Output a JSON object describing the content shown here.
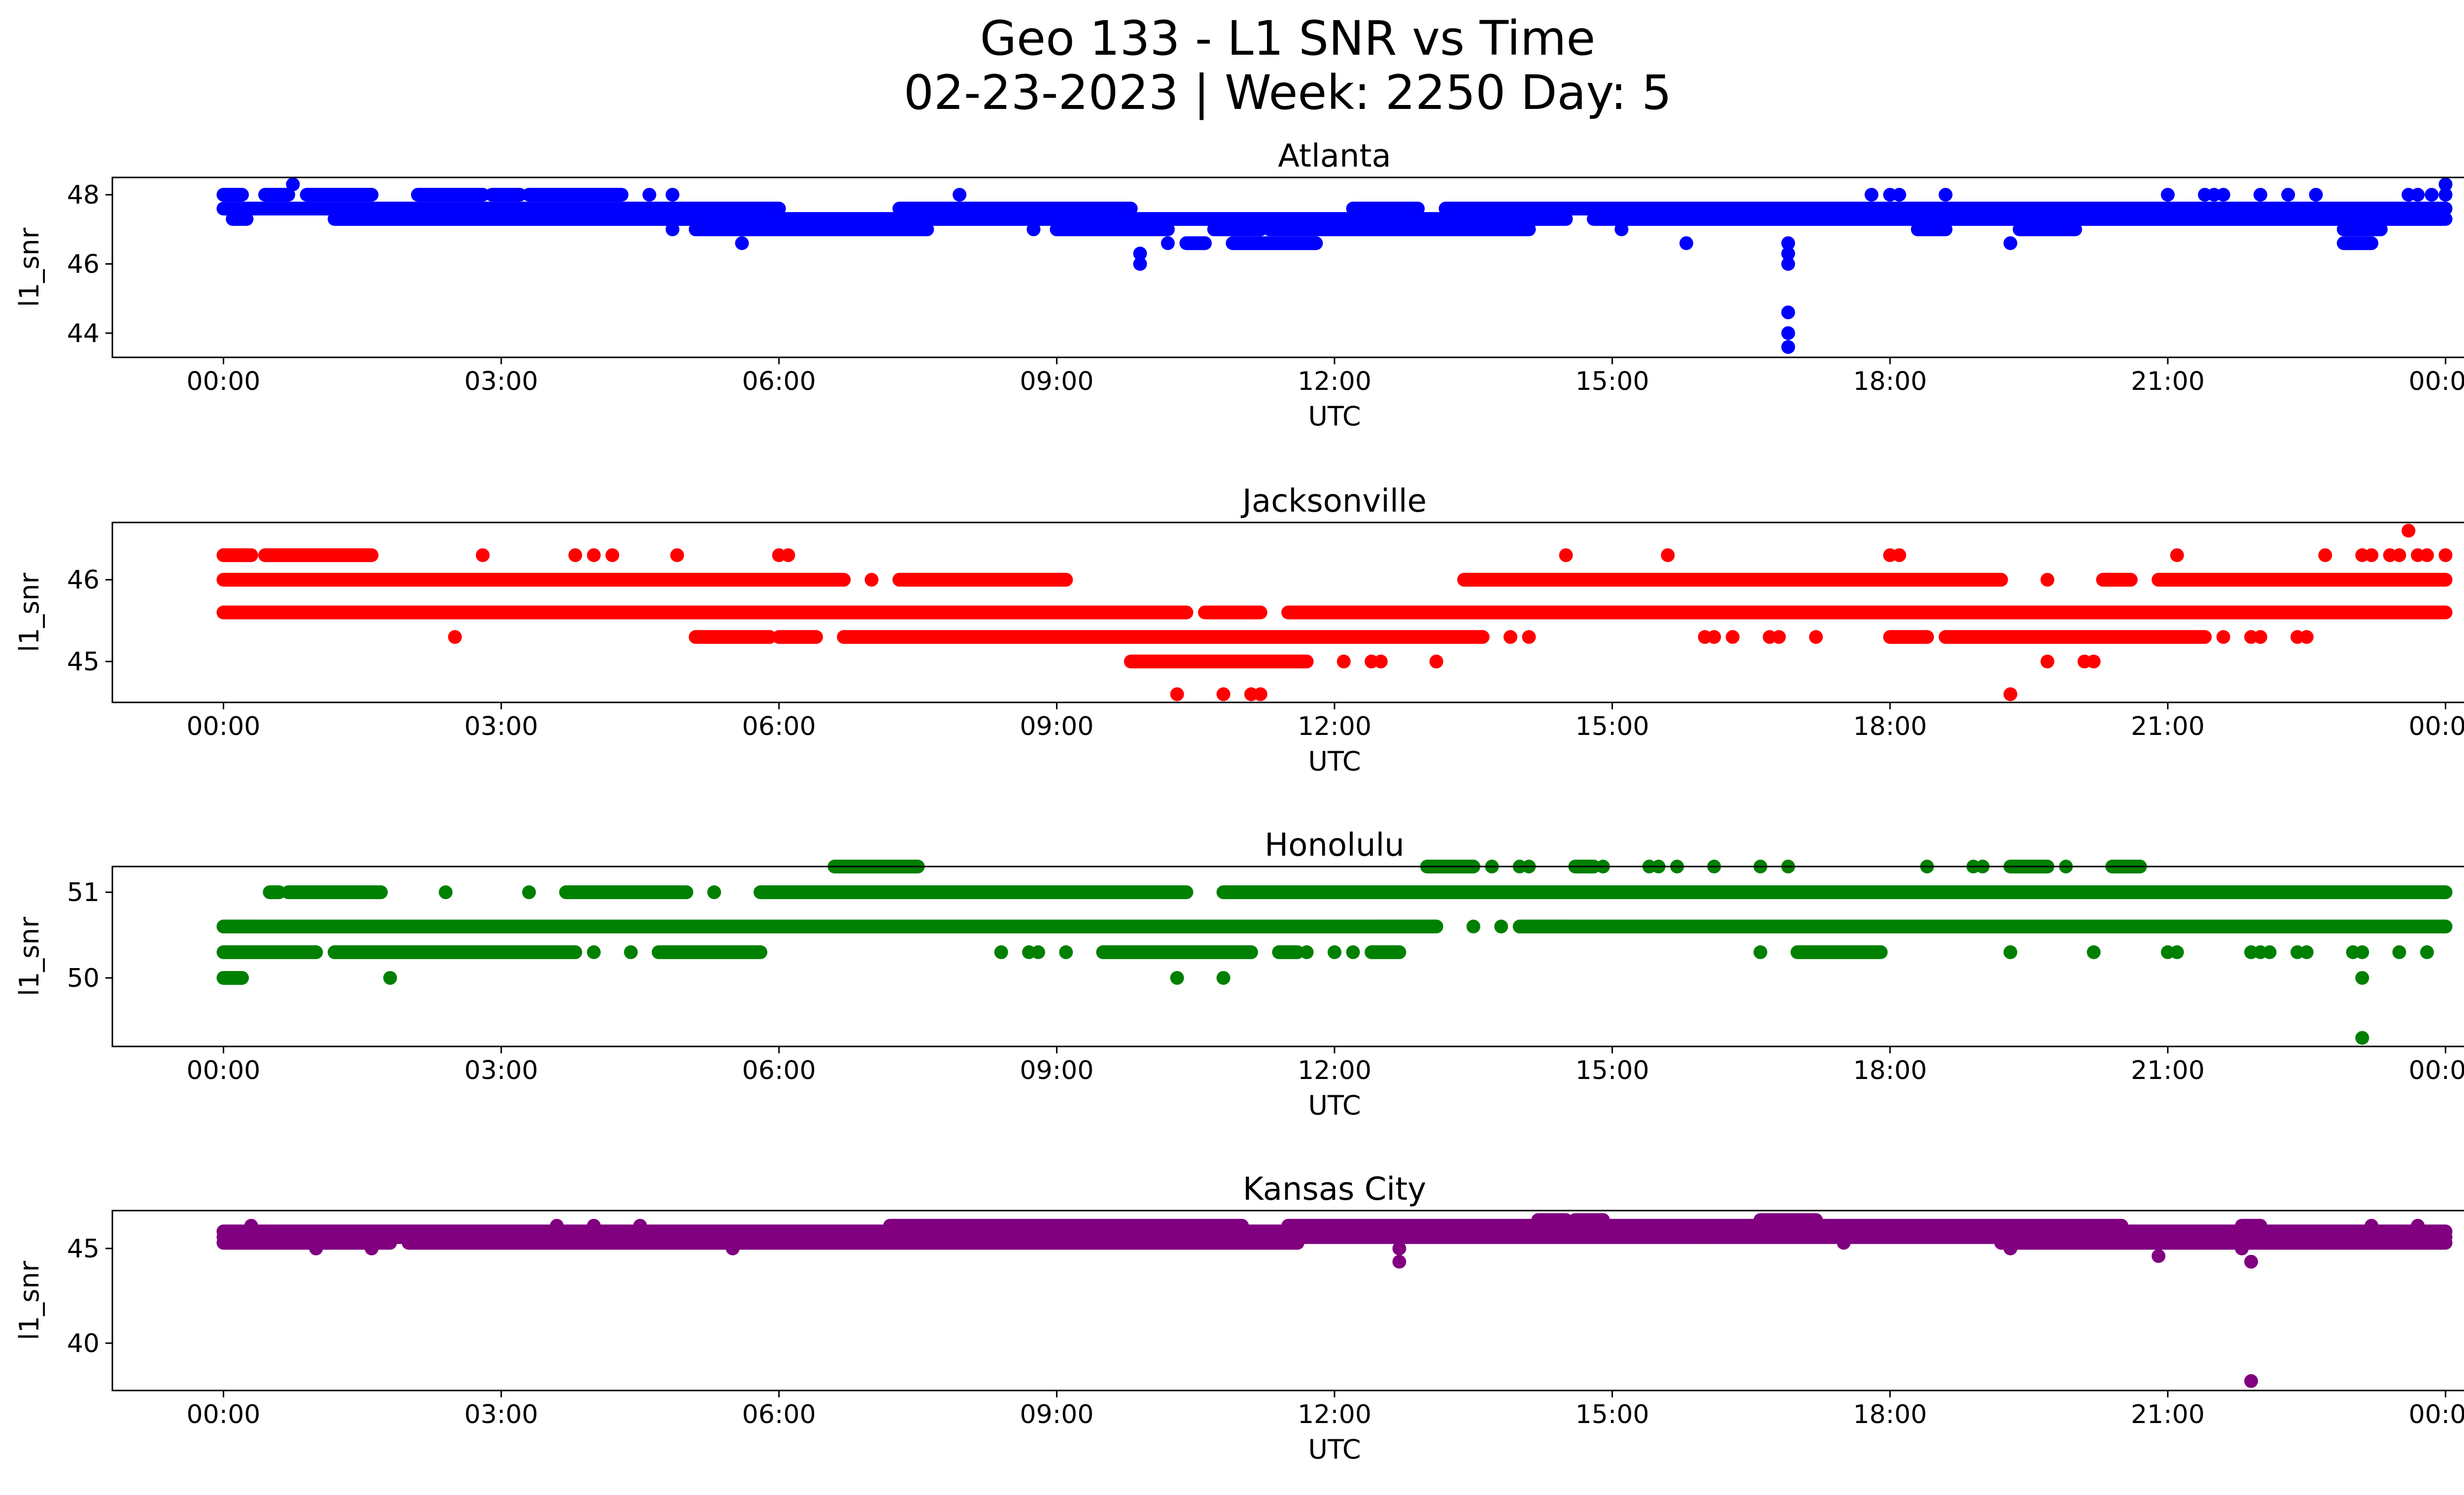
{
  "figure": {
    "title_line1": "Geo 133 - L1 SNR vs Time",
    "title_line2": "02-23-2023 | Week: 2250 Day: 5"
  },
  "chart_data": [
    {
      "type": "scatter",
      "title": "Atlanta",
      "xlabel": "UTC",
      "ylabel": "l1_snr",
      "color": "#0000ff",
      "x_ticks": [
        "00:00",
        "03:00",
        "06:00",
        "09:00",
        "12:00",
        "15:00",
        "18:00",
        "21:00",
        "00:00"
      ],
      "x_range_hours": [
        -1.2,
        25.2
      ],
      "y_ticks": [
        44,
        46,
        48
      ],
      "ylim": [
        43.3,
        48.5
      ],
      "levels": [
        {
          "y": 48.0,
          "runs": [
            [
              0.0,
              0.2
            ],
            [
              0.45,
              0.7
            ],
            [
              0.9,
              1.6
            ],
            [
              2.1,
              2.8
            ],
            [
              2.9,
              3.2
            ],
            [
              3.3,
              4.3
            ]
          ]
        },
        {
          "y": 47.6,
          "runs": [
            [
              0.0,
              6.0
            ],
            [
              7.3,
              9.8
            ],
            [
              12.2,
              12.9
            ],
            [
              13.2,
              24.0
            ]
          ]
        },
        {
          "y": 47.3,
          "runs": [
            [
              0.1,
              0.25
            ],
            [
              1.2,
              9.2
            ],
            [
              9.2,
              14.5
            ],
            [
              14.8,
              24.0
            ]
          ]
        },
        {
          "y": 47.0,
          "runs": [
            [
              5.1,
              7.6
            ],
            [
              9.0,
              10.2
            ],
            [
              10.7,
              11.2
            ],
            [
              11.3,
              14.1
            ],
            [
              18.3,
              18.6
            ],
            [
              19.4,
              20.0
            ],
            [
              22.9,
              23.3
            ]
          ]
        },
        {
          "y": 46.6,
          "runs": [
            [
              10.4,
              10.6
            ],
            [
              10.9,
              11.8
            ],
            [
              22.9,
              23.2
            ]
          ]
        }
      ],
      "points": [
        {
          "x": 0.75,
          "y": 48.3
        },
        {
          "x": 4.6,
          "y": 48.0
        },
        {
          "x": 4.85,
          "y": 48.0
        },
        {
          "x": 7.95,
          "y": 48.0
        },
        {
          "x": 4.85,
          "y": 47.0
        },
        {
          "x": 5.6,
          "y": 46.6
        },
        {
          "x": 8.75,
          "y": 47.0
        },
        {
          "x": 9.9,
          "y": 46.3
        },
        {
          "x": 9.9,
          "y": 46.0
        },
        {
          "x": 10.2,
          "y": 46.6
        },
        {
          "x": 15.1,
          "y": 47.0
        },
        {
          "x": 15.8,
          "y": 46.6
        },
        {
          "x": 16.9,
          "y": 46.6
        },
        {
          "x": 16.9,
          "y": 46.3
        },
        {
          "x": 16.9,
          "y": 46.0
        },
        {
          "x": 16.9,
          "y": 44.6
        },
        {
          "x": 16.9,
          "y": 44.0
        },
        {
          "x": 16.9,
          "y": 43.6
        },
        {
          "x": 17.8,
          "y": 48.0
        },
        {
          "x": 18.0,
          "y": 48.0
        },
        {
          "x": 18.1,
          "y": 48.0
        },
        {
          "x": 18.6,
          "y": 48.0
        },
        {
          "x": 19.3,
          "y": 46.6
        },
        {
          "x": 21.0,
          "y": 48.0
        },
        {
          "x": 21.4,
          "y": 48.0
        },
        {
          "x": 21.5,
          "y": 48.0
        },
        {
          "x": 21.6,
          "y": 48.0
        },
        {
          "x": 22.0,
          "y": 48.0
        },
        {
          "x": 22.3,
          "y": 48.0
        },
        {
          "x": 22.6,
          "y": 48.0
        },
        {
          "x": 23.0,
          "y": 46.6
        },
        {
          "x": 23.6,
          "y": 48.0
        },
        {
          "x": 23.7,
          "y": 48.0
        },
        {
          "x": 23.85,
          "y": 48.0
        },
        {
          "x": 24.0,
          "y": 48.3
        },
        {
          "x": 24.0,
          "y": 48.0
        }
      ]
    },
    {
      "type": "scatter",
      "title": "Jacksonville",
      "xlabel": "UTC",
      "ylabel": "l1_snr",
      "color": "#ff0000",
      "x_ticks": [
        "00:00",
        "03:00",
        "06:00",
        "09:00",
        "12:00",
        "15:00",
        "18:00",
        "21:00",
        "00:00"
      ],
      "x_range_hours": [
        -1.2,
        25.2
      ],
      "y_ticks": [
        45,
        46
      ],
      "ylim": [
        44.5,
        46.7
      ],
      "levels": [
        {
          "y": 46.3,
          "runs": [
            [
              0.0,
              0.3
            ],
            [
              0.45,
              1.6
            ]
          ]
        },
        {
          "y": 46.0,
          "runs": [
            [
              0.0,
              6.7
            ],
            [
              7.3,
              9.1
            ],
            [
              13.4,
              19.2
            ],
            [
              20.3,
              20.6
            ],
            [
              20.9,
              24.0
            ]
          ]
        },
        {
          "y": 45.6,
          "runs": [
            [
              0.0,
              10.4
            ],
            [
              10.6,
              11.2
            ],
            [
              11.5,
              24.0
            ]
          ]
        },
        {
          "y": 45.3,
          "runs": [
            [
              5.1,
              5.9
            ],
            [
              6.0,
              6.4
            ],
            [
              6.7,
              13.6
            ],
            [
              18.0,
              18.4
            ],
            [
              18.6,
              21.4
            ]
          ]
        },
        {
          "y": 45.0,
          "runs": [
            [
              9.8,
              11.7
            ]
          ]
        }
      ],
      "points": [
        {
          "x": 2.5,
          "y": 45.3
        },
        {
          "x": 2.8,
          "y": 46.3
        },
        {
          "x": 3.8,
          "y": 46.3
        },
        {
          "x": 4.0,
          "y": 46.3
        },
        {
          "x": 4.2,
          "y": 46.3
        },
        {
          "x": 4.9,
          "y": 46.3
        },
        {
          "x": 6.0,
          "y": 46.3
        },
        {
          "x": 6.1,
          "y": 46.3
        },
        {
          "x": 6.4,
          "y": 45.3
        },
        {
          "x": 7.0,
          "y": 46.0
        },
        {
          "x": 10.3,
          "y": 44.6
        },
        {
          "x": 10.8,
          "y": 44.6
        },
        {
          "x": 11.1,
          "y": 44.6
        },
        {
          "x": 11.2,
          "y": 44.6
        },
        {
          "x": 12.1,
          "y": 45.0
        },
        {
          "x": 12.4,
          "y": 45.0
        },
        {
          "x": 12.5,
          "y": 45.0
        },
        {
          "x": 13.1,
          "y": 45.0
        },
        {
          "x": 13.9,
          "y": 45.3
        },
        {
          "x": 14.1,
          "y": 45.3
        },
        {
          "x": 14.5,
          "y": 46.3
        },
        {
          "x": 15.6,
          "y": 46.3
        },
        {
          "x": 16.0,
          "y": 45.3
        },
        {
          "x": 16.1,
          "y": 45.3
        },
        {
          "x": 16.3,
          "y": 45.3
        },
        {
          "x": 16.7,
          "y": 45.3
        },
        {
          "x": 16.8,
          "y": 45.3
        },
        {
          "x": 17.2,
          "y": 45.3
        },
        {
          "x": 18.0,
          "y": 46.3
        },
        {
          "x": 18.1,
          "y": 46.3
        },
        {
          "x": 19.3,
          "y": 44.6
        },
        {
          "x": 19.7,
          "y": 46.0
        },
        {
          "x": 19.7,
          "y": 45.0
        },
        {
          "x": 20.1,
          "y": 45.0
        },
        {
          "x": 20.2,
          "y": 45.0
        },
        {
          "x": 21.1,
          "y": 46.3
        },
        {
          "x": 21.6,
          "y": 45.3
        },
        {
          "x": 21.9,
          "y": 45.3
        },
        {
          "x": 22.0,
          "y": 45.3
        },
        {
          "x": 22.4,
          "y": 45.3
        },
        {
          "x": 22.5,
          "y": 45.3
        },
        {
          "x": 22.7,
          "y": 46.3
        },
        {
          "x": 23.1,
          "y": 46.3
        },
        {
          "x": 23.2,
          "y": 46.3
        },
        {
          "x": 23.4,
          "y": 46.3
        },
        {
          "x": 23.5,
          "y": 46.3
        },
        {
          "x": 23.6,
          "y": 46.6
        },
        {
          "x": 23.7,
          "y": 46.3
        },
        {
          "x": 23.8,
          "y": 46.3
        },
        {
          "x": 24.0,
          "y": 46.3
        }
      ]
    },
    {
      "type": "scatter",
      "title": "Honolulu",
      "xlabel": "UTC",
      "ylabel": "l1_snr",
      "color": "#008000",
      "x_ticks": [
        "00:00",
        "03:00",
        "06:00",
        "09:00",
        "12:00",
        "15:00",
        "18:00",
        "21:00",
        "00:00"
      ],
      "x_range_hours": [
        -1.2,
        25.2
      ],
      "y_ticks": [
        50,
        51
      ],
      "ylim": [
        49.2,
        51.3
      ],
      "levels": [
        {
          "y": 51.3,
          "runs": [
            [
              6.6,
              7.5
            ],
            [
              13.0,
              13.5
            ],
            [
              14.6,
              14.8
            ],
            [
              19.3,
              19.7
            ],
            [
              20.4,
              20.7
            ]
          ]
        },
        {
          "y": 51.0,
          "runs": [
            [
              0.5,
              0.6
            ],
            [
              0.7,
              1.7
            ],
            [
              3.7,
              5.0
            ],
            [
              5.8,
              10.4
            ],
            [
              10.8,
              24.0
            ]
          ]
        },
        {
          "y": 50.6,
          "runs": [
            [
              0.0,
              13.1
            ],
            [
              14.0,
              24.0
            ]
          ]
        },
        {
          "y": 50.3,
          "runs": [
            [
              0.0,
              1.0
            ],
            [
              1.2,
              3.8
            ],
            [
              4.7,
              5.8
            ],
            [
              9.5,
              11.1
            ],
            [
              11.4,
              11.6
            ],
            [
              12.4,
              12.7
            ],
            [
              17.0,
              17.9
            ]
          ]
        },
        {
          "y": 50.0,
          "runs": [
            [
              0.0,
              0.2
            ]
          ]
        }
      ],
      "points": [
        {
          "x": 1.8,
          "y": 50.0
        },
        {
          "x": 2.4,
          "y": 51.0
        },
        {
          "x": 3.3,
          "y": 51.0
        },
        {
          "x": 4.0,
          "y": 50.3
        },
        {
          "x": 4.4,
          "y": 50.3
        },
        {
          "x": 5.3,
          "y": 51.0
        },
        {
          "x": 8.4,
          "y": 50.3
        },
        {
          "x": 8.7,
          "y": 50.3
        },
        {
          "x": 8.8,
          "y": 50.3
        },
        {
          "x": 9.1,
          "y": 50.3
        },
        {
          "x": 10.3,
          "y": 50.0
        },
        {
          "x": 10.8,
          "y": 50.0
        },
        {
          "x": 11.7,
          "y": 50.3
        },
        {
          "x": 12.0,
          "y": 50.3
        },
        {
          "x": 12.2,
          "y": 50.3
        },
        {
          "x": 13.1,
          "y": 51.3
        },
        {
          "x": 13.3,
          "y": 51.3
        },
        {
          "x": 13.5,
          "y": 50.6
        },
        {
          "x": 13.7,
          "y": 51.3
        },
        {
          "x": 13.8,
          "y": 50.6
        },
        {
          "x": 14.0,
          "y": 51.3
        },
        {
          "x": 14.1,
          "y": 51.3
        },
        {
          "x": 14.9,
          "y": 51.3
        },
        {
          "x": 15.4,
          "y": 51.3
        },
        {
          "x": 15.5,
          "y": 51.3
        },
        {
          "x": 15.7,
          "y": 51.3
        },
        {
          "x": 16.1,
          "y": 51.3
        },
        {
          "x": 16.6,
          "y": 51.3
        },
        {
          "x": 16.6,
          "y": 50.3
        },
        {
          "x": 16.9,
          "y": 51.3
        },
        {
          "x": 18.4,
          "y": 51.3
        },
        {
          "x": 18.9,
          "y": 51.3
        },
        {
          "x": 19.0,
          "y": 51.3
        },
        {
          "x": 19.3,
          "y": 50.3
        },
        {
          "x": 19.9,
          "y": 51.3
        },
        {
          "x": 20.2,
          "y": 50.3
        },
        {
          "x": 20.5,
          "y": 51.3
        },
        {
          "x": 21.0,
          "y": 50.3
        },
        {
          "x": 21.1,
          "y": 50.3
        },
        {
          "x": 21.9,
          "y": 50.3
        },
        {
          "x": 22.0,
          "y": 50.3
        },
        {
          "x": 22.1,
          "y": 50.3
        },
        {
          "x": 22.4,
          "y": 50.3
        },
        {
          "x": 22.5,
          "y": 50.3
        },
        {
          "x": 23.0,
          "y": 50.3
        },
        {
          "x": 23.1,
          "y": 50.3
        },
        {
          "x": 23.1,
          "y": 50.0
        },
        {
          "x": 23.1,
          "y": 49.3
        },
        {
          "x": 23.5,
          "y": 50.3
        },
        {
          "x": 23.8,
          "y": 50.3
        }
      ]
    },
    {
      "type": "scatter",
      "title": "Kansas City",
      "xlabel": "UTC",
      "ylabel": "l1_snr",
      "color": "#800080",
      "x_ticks": [
        "00:00",
        "03:00",
        "06:00",
        "09:00",
        "12:00",
        "15:00",
        "18:00",
        "21:00",
        "00:00"
      ],
      "x_range_hours": [
        -1.2,
        25.2
      ],
      "y_ticks": [
        40,
        45
      ],
      "ylim": [
        37.5,
        47.0
      ],
      "levels": [
        {
          "y": 45.9,
          "runs": [
            [
              0.0,
              24.0
            ]
          ]
        },
        {
          "y": 45.6,
          "runs": [
            [
              0.0,
              24.0
            ]
          ]
        },
        {
          "y": 45.3,
          "runs": [
            [
              0.0,
              1.8
            ],
            [
              2.0,
              11.6
            ],
            [
              19.2,
              24.0
            ]
          ]
        },
        {
          "y": 46.2,
          "runs": [
            [
              7.2,
              11.0
            ],
            [
              11.5,
              20.5
            ],
            [
              21.8,
              22.0
            ]
          ]
        },
        {
          "y": 46.5,
          "runs": [
            [
              14.2,
              14.5
            ],
            [
              14.6,
              14.9
            ],
            [
              16.6,
              17.2
            ]
          ]
        }
      ],
      "points": [
        {
          "x": 0.3,
          "y": 46.2
        },
        {
          "x": 1.0,
          "y": 45.0
        },
        {
          "x": 1.6,
          "y": 45.0
        },
        {
          "x": 3.6,
          "y": 46.2
        },
        {
          "x": 4.0,
          "y": 46.2
        },
        {
          "x": 4.5,
          "y": 46.2
        },
        {
          "x": 5.5,
          "y": 45.0
        },
        {
          "x": 11.6,
          "y": 45.3
        },
        {
          "x": 12.7,
          "y": 45.0
        },
        {
          "x": 12.7,
          "y": 44.3
        },
        {
          "x": 13.8,
          "y": 45.6
        },
        {
          "x": 15.5,
          "y": 45.6
        },
        {
          "x": 15.9,
          "y": 45.6
        },
        {
          "x": 17.5,
          "y": 45.3
        },
        {
          "x": 19.3,
          "y": 45.0
        },
        {
          "x": 20.9,
          "y": 44.6
        },
        {
          "x": 21.8,
          "y": 45.0
        },
        {
          "x": 21.9,
          "y": 44.3
        },
        {
          "x": 21.9,
          "y": 38.0
        },
        {
          "x": 23.2,
          "y": 46.2
        },
        {
          "x": 23.7,
          "y": 46.2
        }
      ]
    }
  ]
}
